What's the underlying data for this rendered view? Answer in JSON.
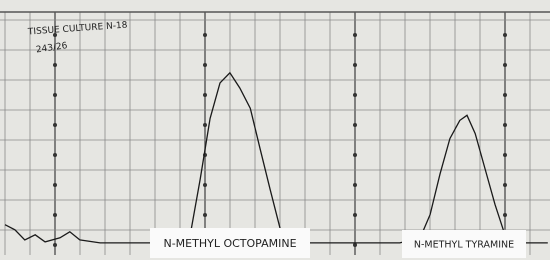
{
  "chart_data": {
    "type": "line",
    "title": "TISSUE CULTURE N-18",
    "subtitle": "243/26",
    "annotations": [
      "N-METHYL OCTOPAMINE",
      "N-METHYL TYRAMINE"
    ],
    "x": [
      0.9,
      2.7,
      4.5,
      6.4,
      8.2,
      10.9,
      12.7,
      14.5,
      18.2,
      25.5,
      32.7,
      34.5,
      36.4,
      38.2,
      40,
      41.8,
      43.6,
      45.5,
      47.3,
      49.1,
      50.9,
      52.7,
      56.4,
      65.5,
      72.7,
      76.4,
      78.2,
      80,
      81.8,
      83.6,
      84.9,
      86.4,
      88.2,
      90,
      91.8,
      93.6,
      99.6
    ],
    "values": [
      12.5,
      10,
      5,
      7.5,
      4,
      6,
      9,
      5,
      3.5,
      3.5,
      3.5,
      6,
      35,
      65,
      82.5,
      87.5,
      80,
      70,
      50,
      30,
      11,
      4,
      3.5,
      3.5,
      3.5,
      6,
      17.5,
      37.5,
      55,
      64,
      66.5,
      57.5,
      40,
      22.5,
      7.5,
      3.5,
      3.5
    ],
    "color": "#1a1a1a",
    "xlim": [
      0,
      100
    ],
    "ylim": [
      0,
      100
    ],
    "grid": true
  }
}
